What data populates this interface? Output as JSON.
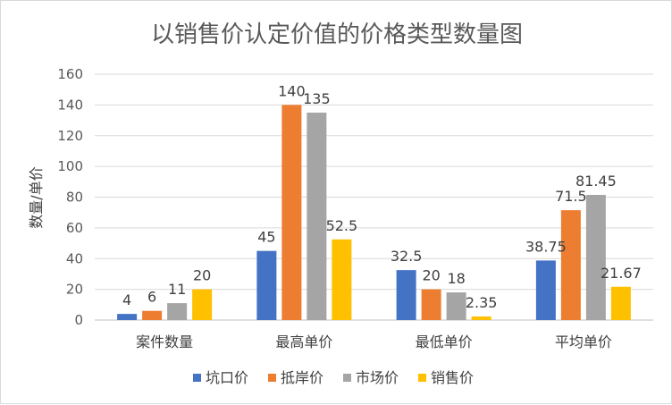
{
  "chart_data": {
    "type": "bar",
    "title": "以销售价认定价值的价格类型数量图",
    "ylabel": "数量/单价",
    "xlabel": "",
    "categories": [
      "案件数量",
      "最高单价",
      "最低单价",
      "平均单价"
    ],
    "series": [
      {
        "name": "坑口价",
        "color": "#4472C4",
        "values": [
          4,
          45,
          32.5,
          38.75
        ],
        "labels": [
          "4",
          "45",
          "32.5",
          "38.75"
        ]
      },
      {
        "name": "抵岸价",
        "color": "#ED7D31",
        "values": [
          6,
          140,
          20,
          71.5
        ],
        "labels": [
          "6",
          "140",
          "20",
          "71.5"
        ]
      },
      {
        "name": "市场价",
        "color": "#A5A5A5",
        "values": [
          11,
          135,
          18,
          81.45
        ],
        "labels": [
          "11",
          "135",
          "18",
          "81.45"
        ]
      },
      {
        "name": "销售价",
        "color": "#FFC000",
        "values": [
          20,
          52.5,
          2.35,
          21.67
        ],
        "labels": [
          "20",
          "52.5",
          "2.35",
          "21.67"
        ]
      }
    ],
    "ylim": [
      0,
      160
    ],
    "yticks": [
      "0",
      "20",
      "40",
      "60",
      "80",
      "100",
      "120",
      "140",
      "160"
    ],
    "grid": true,
    "legend_position": "bottom"
  }
}
